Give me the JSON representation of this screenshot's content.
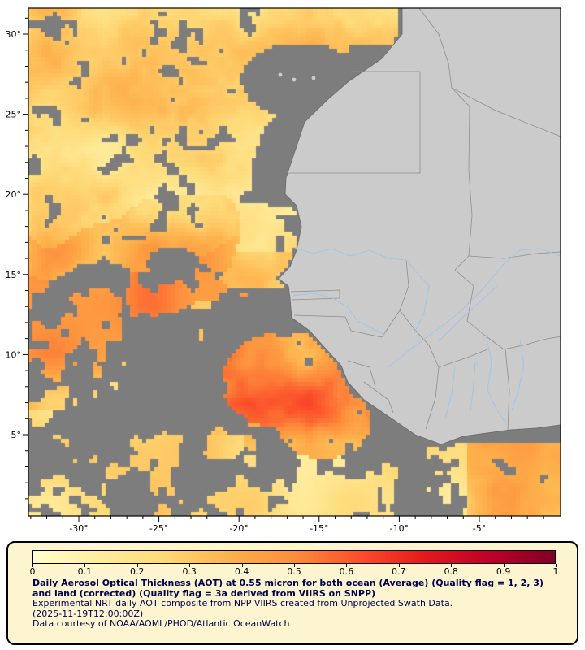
{
  "map": {
    "y_axis": {
      "labels": [
        {
          "text": "30°",
          "value": 30
        },
        {
          "text": "25°",
          "value": 25
        },
        {
          "text": "20°",
          "value": 20
        },
        {
          "text": "15°",
          "value": 15
        },
        {
          "text": "10°",
          "value": 10
        },
        {
          "text": "5°",
          "value": 5
        }
      ]
    },
    "x_axis": {
      "labels": [
        {
          "text": "-30°",
          "value": -30
        },
        {
          "text": "-25°",
          "value": -25
        },
        {
          "text": "-20°",
          "value": -20
        },
        {
          "text": "-15°",
          "value": -15
        },
        {
          "text": "-10°",
          "value": -10
        },
        {
          "text": "-5°",
          "value": -5
        }
      ]
    },
    "colors": {
      "ocean_nodata": "#7d7d7d",
      "land": "#cbcbcb",
      "coastline": "#6e6e6e",
      "country_border": "#8f8f8f",
      "river": "#9fc5e8",
      "frame": "#000000",
      "aot_ramp": [
        "#ffffcc",
        "#ffeda0",
        "#fed976",
        "#feb24c",
        "#fd8d3c",
        "#fc4e2a",
        "#e31a1c",
        "#bd0026",
        "#800026"
      ]
    }
  },
  "legend": {
    "scale_min": 0,
    "scale_max": 1,
    "tick_labels": [
      "0",
      "0.1",
      "0.2",
      "0.3",
      "0.4",
      "0.5",
      "0.6",
      "0.7",
      "0.8",
      "0.9",
      "1"
    ],
    "title": "Daily Aerosol Optical Thickness (AOT) at 0.55 micron for both ocean (Average) (Quality flag = 1, 2, 3) and land (corrected) (Quality flag = 3a derived from VIIRS on SNPP)",
    "line2": "Experimental NRT daily AOT composite from NPP VIIRS created from Unprojected Swath Data.",
    "line3": "(2025-11-19T12:00:00Z)",
    "line4": "Data courtesy of NOAA/AOML/PHOD/Atlantic OceanWatch",
    "colors": {
      "panel_bg": "#fdf5d0",
      "panel_border": "#000000",
      "text": "#00004c"
    }
  }
}
